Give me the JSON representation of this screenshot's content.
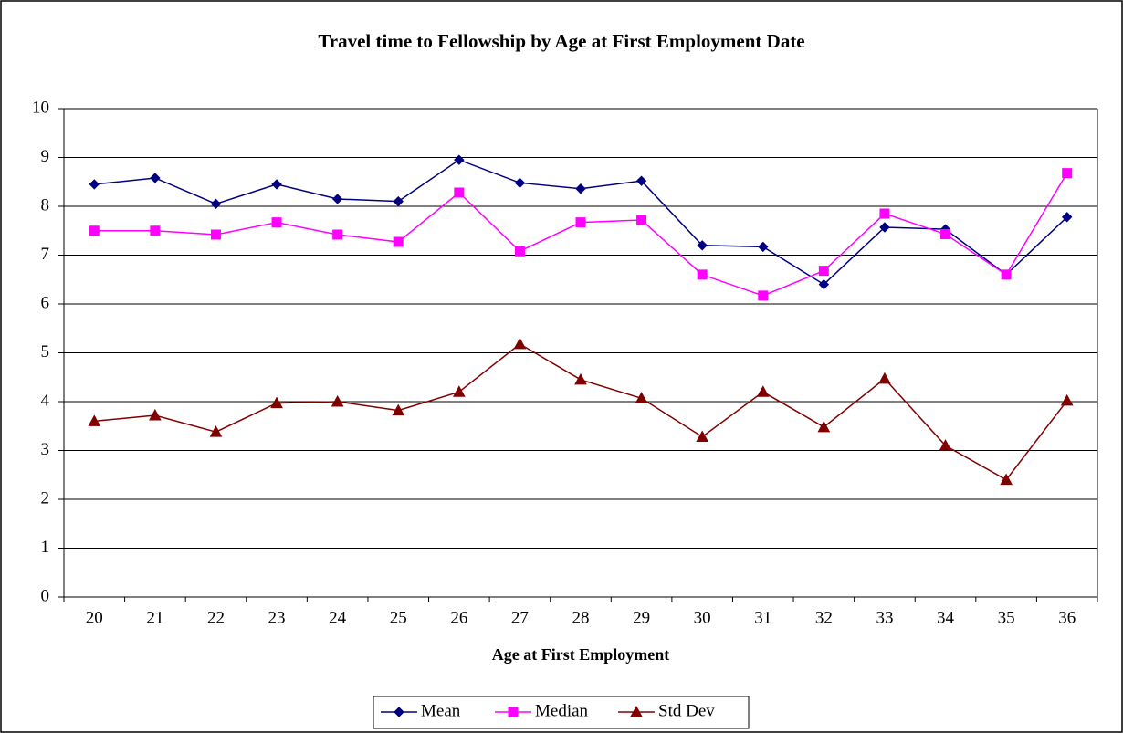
{
  "chart_data": {
    "type": "line",
    "title": "Travel time to Fellowship by Age at First Employment Date",
    "x_label": "Age at First Employment",
    "categories": [
      "20",
      "21",
      "22",
      "23",
      "24",
      "25",
      "26",
      "27",
      "28",
      "29",
      "30",
      "31",
      "32",
      "33",
      "34",
      "35",
      "36"
    ],
    "series": [
      {
        "name": "Mean",
        "color": "#000080",
        "marker": "diamond",
        "values": [
          8.45,
          8.58,
          8.05,
          8.45,
          8.15,
          8.1,
          8.95,
          8.48,
          8.36,
          8.52,
          7.2,
          7.17,
          6.4,
          7.57,
          7.53,
          6.6,
          7.78
        ]
      },
      {
        "name": "Median",
        "color": "#ff00ff",
        "marker": "square",
        "values": [
          7.5,
          7.5,
          7.42,
          7.67,
          7.42,
          7.27,
          8.28,
          7.08,
          7.67,
          7.72,
          6.6,
          6.17,
          6.68,
          7.85,
          7.43,
          6.6,
          8.68
        ]
      },
      {
        "name": "Std Dev",
        "color": "#800000",
        "marker": "triangle",
        "values": [
          3.6,
          3.72,
          3.38,
          3.97,
          4.0,
          3.82,
          4.2,
          5.18,
          4.45,
          4.07,
          3.28,
          4.2,
          3.48,
          4.47,
          3.1,
          2.4,
          4.02
        ]
      }
    ],
    "ylim": [
      0,
      10
    ],
    "yticks": [
      0,
      1,
      2,
      3,
      4,
      5,
      6,
      7,
      8,
      9,
      10
    ],
    "grid": true,
    "legend": "bottom"
  }
}
